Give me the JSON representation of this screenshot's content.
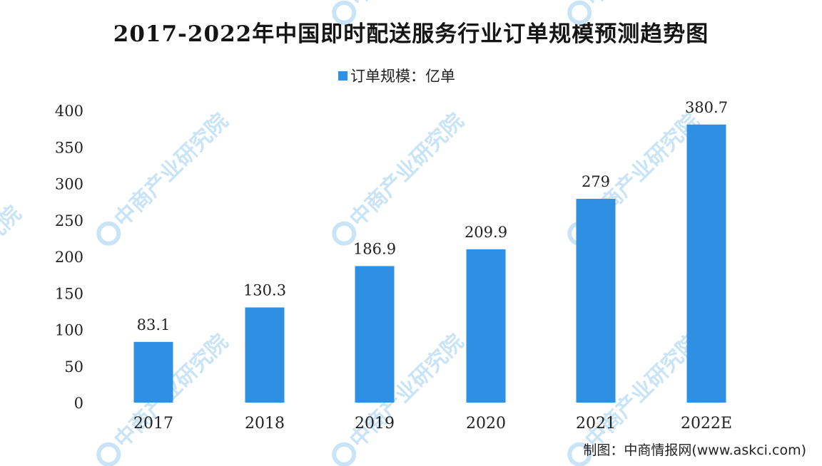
{
  "title": "2017-2022年中国即时配送服务行业订单规模预测趋势图",
  "source": "制图：中商情报网(www.askci.com)",
  "watermark": "中商产业研究院",
  "colors": {
    "bar": "#2f8fe2",
    "watermark": "#c9e4f6"
  },
  "chart_data": {
    "type": "bar",
    "title": "2017-2022年中国即时配送服务行业订单规模预测趋势图",
    "categories": [
      "2017",
      "2018",
      "2019",
      "2020",
      "2021",
      "2022E"
    ],
    "series": [
      {
        "name": "订单规模：亿单",
        "values": [
          83.1,
          130.3,
          186.9,
          209.9,
          279,
          380.7
        ]
      }
    ],
    "data_labels": [
      "83.1",
      "130.3",
      "186.9",
      "209.9",
      "279",
      "380.7"
    ],
    "ylim": [
      0,
      400
    ],
    "yticks": [
      "0",
      "50",
      "100",
      "150",
      "200",
      "250",
      "300",
      "350",
      "400"
    ],
    "grid": false,
    "legend_position": "top"
  }
}
